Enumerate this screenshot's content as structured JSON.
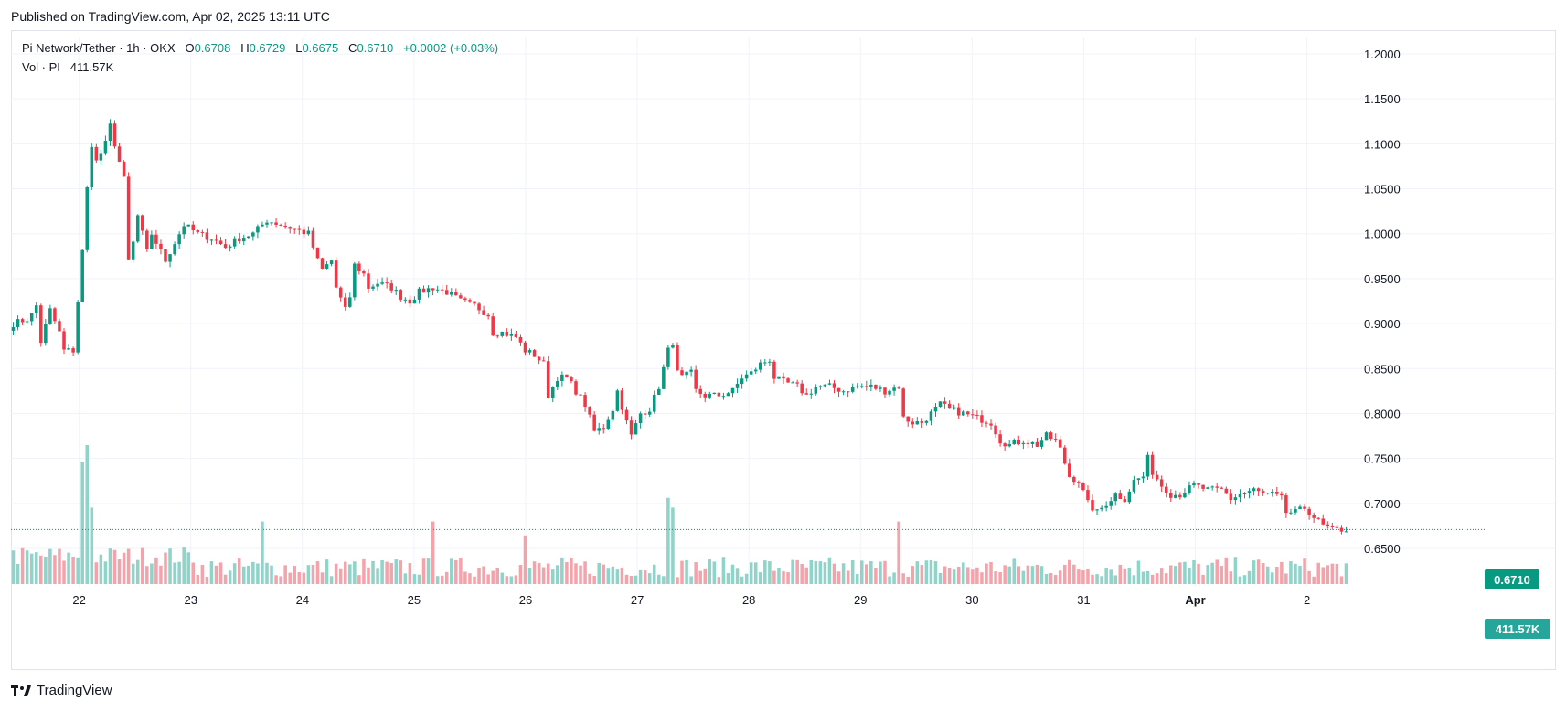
{
  "header": {
    "published": "Published on TradingView.com, Apr 02, 2025 13:11 UTC"
  },
  "legend": {
    "symbol": "Pi Network/Tether · 1h · OKX",
    "o_label": "O",
    "o_value": "0.6708",
    "h_label": "H",
    "h_value": "0.6729",
    "l_label": "L",
    "l_value": "0.6675",
    "c_label": "C",
    "c_value": "0.6710",
    "change": "+0.0002 (+0.03%)",
    "vol_label": "Vol · PI",
    "vol_value": "411.57K"
  },
  "badges": {
    "last_price": "0.6710",
    "last_volume": "411.57K"
  },
  "footer": {
    "brand": "TradingView"
  },
  "colors": {
    "up": "#089981",
    "down": "#f23645",
    "vol_up": "#8fd3c9",
    "vol_down": "#f5a3ab",
    "grid": "#f0f3fa"
  },
  "chart_data": {
    "type": "candlestick",
    "interval": "1h",
    "y_axis": {
      "ticks": [
        "1.2000",
        "1.1500",
        "1.1000",
        "1.0500",
        "1.0000",
        "0.9500",
        "0.9000",
        "0.8500",
        "0.8000",
        "0.7500",
        "0.7000",
        "0.6500"
      ],
      "min": 0.64,
      "max": 1.21
    },
    "x_axis": {
      "ticks": [
        "22",
        "23",
        "24",
        "25",
        "26",
        "27",
        "28",
        "29",
        "30",
        "31",
        "Apr",
        "2"
      ]
    },
    "last_price": 0.671,
    "price_path": [
      [
        0,
        0.9
      ],
      [
        3,
        0.905
      ],
      [
        4,
        0.91
      ],
      [
        5,
        0.92
      ],
      [
        6,
        0.88
      ],
      [
        8,
        0.915
      ],
      [
        10,
        0.89
      ],
      [
        11,
        0.87
      ],
      [
        13,
        0.87
      ],
      [
        15,
        0.98
      ],
      [
        16,
        1.05
      ],
      [
        17,
        1.1
      ],
      [
        18,
        1.08
      ],
      [
        19,
        1.09
      ],
      [
        20,
        1.1
      ],
      [
        21,
        1.12
      ],
      [
        22,
        1.1
      ],
      [
        23,
        1.08
      ],
      [
        24,
        1.06
      ],
      [
        25,
        0.97
      ],
      [
        26,
        0.99
      ],
      [
        27,
        1.02
      ],
      [
        28,
        1.0
      ],
      [
        29,
        0.98
      ],
      [
        30,
        1.0
      ],
      [
        31,
        0.99
      ],
      [
        33,
        0.97
      ],
      [
        35,
        0.99
      ],
      [
        37,
        1.01
      ],
      [
        40,
        1.0
      ],
      [
        43,
        0.995
      ],
      [
        46,
        0.985
      ],
      [
        49,
        0.995
      ],
      [
        52,
        1.0
      ],
      [
        55,
        1.015
      ],
      [
        58,
        1.01
      ],
      [
        61,
        1.005
      ],
      [
        64,
        1.0
      ],
      [
        66,
        0.97
      ],
      [
        67,
        0.96
      ],
      [
        69,
        0.97
      ],
      [
        70,
        0.94
      ],
      [
        72,
        0.915
      ],
      [
        73,
        0.93
      ],
      [
        74,
        0.965
      ],
      [
        76,
        0.955
      ],
      [
        77,
        0.94
      ],
      [
        79,
        0.945
      ],
      [
        82,
        0.94
      ],
      [
        84,
        0.93
      ],
      [
        86,
        0.925
      ],
      [
        88,
        0.935
      ],
      [
        91,
        0.94
      ],
      [
        94,
        0.935
      ],
      [
        97,
        0.925
      ],
      [
        100,
        0.92
      ],
      [
        103,
        0.91
      ],
      [
        104,
        0.89
      ],
      [
        106,
        0.89
      ],
      [
        109,
        0.885
      ],
      [
        111,
        0.87
      ],
      [
        113,
        0.865
      ],
      [
        115,
        0.855
      ],
      [
        116,
        0.82
      ],
      [
        118,
        0.84
      ],
      [
        120,
        0.84
      ],
      [
        122,
        0.825
      ],
      [
        124,
        0.81
      ],
      [
        126,
        0.78
      ],
      [
        128,
        0.785
      ],
      [
        130,
        0.805
      ],
      [
        131,
        0.825
      ],
      [
        133,
        0.79
      ],
      [
        134,
        0.775
      ],
      [
        136,
        0.8
      ],
      [
        138,
        0.805
      ],
      [
        140,
        0.83
      ],
      [
        142,
        0.87
      ],
      [
        143,
        0.88
      ],
      [
        144,
        0.845
      ],
      [
        145,
        0.84
      ],
      [
        147,
        0.845
      ],
      [
        148,
        0.825
      ],
      [
        150,
        0.82
      ],
      [
        153,
        0.82
      ],
      [
        156,
        0.825
      ],
      [
        158,
        0.84
      ],
      [
        160,
        0.845
      ],
      [
        162,
        0.855
      ],
      [
        164,
        0.86
      ],
      [
        165,
        0.84
      ],
      [
        167,
        0.835
      ],
      [
        170,
        0.83
      ],
      [
        172,
        0.82
      ],
      [
        174,
        0.83
      ],
      [
        177,
        0.83
      ],
      [
        180,
        0.825
      ],
      [
        183,
        0.83
      ],
      [
        186,
        0.83
      ],
      [
        189,
        0.825
      ],
      [
        192,
        0.83
      ],
      [
        193,
        0.795
      ],
      [
        195,
        0.79
      ],
      [
        197,
        0.79
      ],
      [
        199,
        0.8
      ],
      [
        201,
        0.81
      ],
      [
        203,
        0.805
      ],
      [
        206,
        0.8
      ],
      [
        209,
        0.795
      ],
      [
        212,
        0.79
      ],
      [
        214,
        0.77
      ],
      [
        216,
        0.765
      ],
      [
        219,
        0.77
      ],
      [
        222,
        0.765
      ],
      [
        224,
        0.775
      ],
      [
        226,
        0.77
      ],
      [
        227,
        0.76
      ],
      [
        229,
        0.73
      ],
      [
        231,
        0.725
      ],
      [
        233,
        0.7
      ],
      [
        235,
        0.69
      ],
      [
        237,
        0.7
      ],
      [
        239,
        0.71
      ],
      [
        241,
        0.705
      ],
      [
        243,
        0.725
      ],
      [
        245,
        0.73
      ],
      [
        246,
        0.75
      ],
      [
        247,
        0.735
      ],
      [
        249,
        0.72
      ],
      [
        251,
        0.71
      ],
      [
        253,
        0.71
      ],
      [
        256,
        0.72
      ],
      [
        259,
        0.715
      ],
      [
        262,
        0.715
      ],
      [
        264,
        0.705
      ],
      [
        266,
        0.71
      ],
      [
        269,
        0.715
      ],
      [
        271,
        0.71
      ],
      [
        273,
        0.71
      ],
      [
        275,
        0.705
      ],
      [
        276,
        0.69
      ],
      [
        278,
        0.69
      ],
      [
        280,
        0.695
      ],
      [
        282,
        0.685
      ],
      [
        284,
        0.675
      ],
      [
        286,
        0.67
      ],
      [
        288,
        0.671
      ]
    ],
    "volume_spikes": [
      [
        15,
        0.88
      ],
      [
        16,
        1.0
      ],
      [
        17,
        0.55
      ],
      [
        54,
        0.45
      ],
      [
        91,
        0.45
      ],
      [
        111,
        0.35
      ],
      [
        142,
        0.62
      ],
      [
        143,
        0.55
      ],
      [
        192,
        0.45
      ]
    ]
  }
}
